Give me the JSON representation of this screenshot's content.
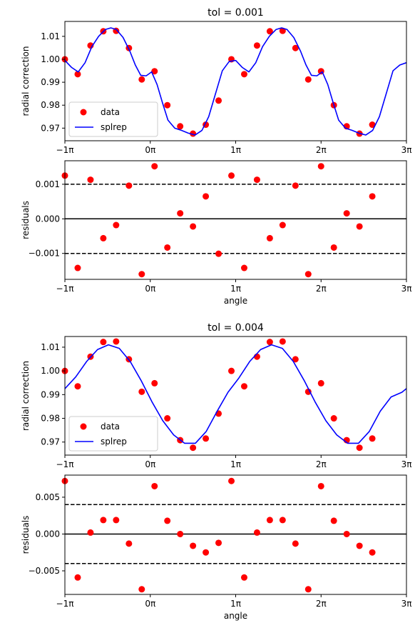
{
  "chart_data": [
    {
      "type": "scatter+line",
      "title": "tol = 0.001",
      "xlabel": "",
      "ylabel": "radial correction",
      "xlim": [
        -3.14159,
        9.42478
      ],
      "ylim": [
        0.9645,
        1.0165
      ],
      "xticks": [
        -3.14159,
        0,
        3.14159,
        6.28319,
        9.42478
      ],
      "xtick_labels": [
        "−1π",
        "0π",
        "1π",
        "2π",
        "3π"
      ],
      "yticks": [
        0.97,
        0.98,
        0.99,
        1.0,
        1.01
      ],
      "ytick_labels": [
        "0.97",
        "0.98",
        "0.99",
        "1.00",
        "1.01"
      ],
      "legend": {
        "position": "lower-left",
        "entries": [
          "data",
          "splrep"
        ]
      },
      "series": [
        {
          "name": "data",
          "kind": "scatter",
          "color": "#ff0000",
          "x": [
            -3.142,
            -2.67,
            -2.199,
            -1.728,
            -1.257,
            -0.785,
            -0.314,
            0.157,
            0.628,
            1.1,
            1.571,
            2.042,
            2.513,
            2.985,
            3.456,
            3.927,
            4.398,
            4.869,
            5.341,
            5.812,
            6.283,
            6.754,
            7.226,
            7.697,
            8.168
          ],
          "y": [
            1.0,
            0.9935,
            1.006,
            1.0122,
            1.0124,
            1.0049,
            0.9912,
            0.9948,
            0.98,
            0.9708,
            0.9676,
            0.9715,
            0.982,
            1.0,
            0.9935,
            1.006,
            1.0122,
            1.0124,
            1.0049,
            0.9912,
            0.9948,
            0.98,
            0.9708,
            0.9676,
            0.9715
          ]
        },
        {
          "name": "splrep",
          "kind": "line",
          "color": "#0000ff",
          "x": [
            -3.142,
            -2.9,
            -2.65,
            -2.4,
            -2.15,
            -1.9,
            -1.65,
            -1.45,
            -1.25,
            -1.0,
            -0.75,
            -0.55,
            -0.35,
            -0.15,
            0.05,
            0.25,
            0.45,
            0.65,
            0.9,
            1.15,
            1.4,
            1.65,
            1.9,
            2.15,
            2.4,
            2.65,
            2.9,
            3.142,
            3.38,
            3.63,
            3.88,
            4.13,
            4.38,
            4.63,
            4.83,
            5.03,
            5.28,
            5.53,
            5.73,
            5.93,
            6.13,
            6.33,
            6.53,
            6.73,
            6.93,
            7.18,
            7.43,
            7.68,
            7.93,
            8.18,
            8.43,
            8.68,
            8.93,
            9.18,
            9.42
          ],
          "y": [
            0.9995,
            0.9965,
            0.9945,
            0.9985,
            1.0055,
            1.01,
            1.013,
            1.0137,
            1.013,
            1.0095,
            1.0035,
            0.9975,
            0.993,
            0.9928,
            0.9945,
            0.989,
            0.981,
            0.9735,
            0.97,
            0.969,
            0.9678,
            0.967,
            0.969,
            0.975,
            0.985,
            0.995,
            0.999,
            0.9995,
            0.9965,
            0.9945,
            0.9985,
            1.0055,
            1.01,
            1.013,
            1.0137,
            1.013,
            1.0095,
            1.0035,
            0.9975,
            0.993,
            0.9928,
            0.9945,
            0.989,
            0.981,
            0.9735,
            0.97,
            0.969,
            0.9678,
            0.967,
            0.969,
            0.975,
            0.985,
            0.995,
            0.9975,
            0.9985
          ]
        }
      ]
    },
    {
      "type": "scatter",
      "title": "",
      "xlabel": "angle",
      "ylabel": "residuals",
      "xlim": [
        -3.14159,
        9.42478
      ],
      "ylim": [
        -0.00175,
        0.00168
      ],
      "xticks": [
        -3.14159,
        0,
        3.14159,
        6.28319,
        9.42478
      ],
      "xtick_labels": [
        "−1π",
        "0π",
        "1π",
        "2π",
        "3π"
      ],
      "yticks": [
        -0.001,
        0.0,
        0.001
      ],
      "ytick_labels": [
        "−0.001",
        "0.000",
        "0.001"
      ],
      "hlines": [
        {
          "y": 0.001,
          "style": "dashed"
        },
        {
          "y": 0.0,
          "style": "solid"
        },
        {
          "y": -0.001,
          "style": "dashed"
        }
      ],
      "series": [
        {
          "name": "",
          "kind": "scatter",
          "color": "#ff0000",
          "x": [
            -3.142,
            -2.67,
            -2.199,
            -1.728,
            -1.257,
            -0.785,
            -0.314,
            0.157,
            0.628,
            1.1,
            1.571,
            2.042,
            2.513,
            2.985,
            3.456,
            3.927,
            4.398,
            4.869,
            5.341,
            5.812,
            6.283,
            6.754,
            7.226,
            7.697,
            8.168
          ],
          "y": [
            0.00125,
            -0.00142,
            0.00113,
            -0.00056,
            -0.00018,
            0.00096,
            -0.0016,
            0.00152,
            -0.00083,
            0.00016,
            -0.00022,
            0.00065,
            -0.00101,
            0.00125,
            -0.00142,
            0.00113,
            -0.00056,
            -0.00018,
            0.00096,
            -0.0016,
            0.00152,
            -0.00083,
            0.00016,
            -0.00022,
            0.00065
          ]
        }
      ]
    },
    {
      "type": "scatter+line",
      "title": "tol = 0.004",
      "xlabel": "",
      "ylabel": "radial correction",
      "xlim": [
        -3.14159,
        9.42478
      ],
      "ylim": [
        0.9645,
        1.0145
      ],
      "xticks": [
        -3.14159,
        0,
        3.14159,
        6.28319,
        9.42478
      ],
      "xtick_labels": [
        "−1π",
        "0π",
        "1π",
        "2π",
        "3π"
      ],
      "yticks": [
        0.97,
        0.98,
        0.99,
        1.0,
        1.01
      ],
      "ytick_labels": [
        "0.97",
        "0.98",
        "0.99",
        "1.00",
        "1.01"
      ],
      "legend": {
        "position": "lower-left",
        "entries": [
          "data",
          "splrep"
        ]
      },
      "series": [
        {
          "name": "data",
          "kind": "scatter",
          "color": "#ff0000",
          "x": [
            -3.142,
            -2.67,
            -2.199,
            -1.728,
            -1.257,
            -0.785,
            -0.314,
            0.157,
            0.628,
            1.1,
            1.571,
            2.042,
            2.513,
            2.985,
            3.456,
            3.927,
            4.398,
            4.869,
            5.341,
            5.812,
            6.283,
            6.754,
            7.226,
            7.697,
            8.168
          ],
          "y": [
            1.0,
            0.9935,
            1.006,
            1.0122,
            1.0124,
            1.0049,
            0.9912,
            0.9948,
            0.98,
            0.9708,
            0.9676,
            0.9715,
            0.982,
            1.0,
            0.9935,
            1.006,
            1.0122,
            1.0124,
            1.0049,
            0.9912,
            0.9948,
            0.98,
            0.9708,
            0.9676,
            0.9715
          ]
        },
        {
          "name": "splrep",
          "kind": "line",
          "color": "#0000ff",
          "x": [
            -3.142,
            -2.74,
            -2.34,
            -1.94,
            -1.54,
            -1.14,
            -0.74,
            -0.34,
            0.06,
            0.46,
            0.86,
            1.26,
            1.66,
            2.06,
            2.46,
            2.86,
            3.26,
            3.66,
            4.06,
            4.46,
            4.86,
            5.26,
            5.66,
            6.06,
            6.46,
            6.86,
            7.26,
            7.66,
            8.06,
            8.46,
            8.86,
            9.26,
            9.42
          ],
          "y": [
            0.9925,
            0.9975,
            1.004,
            1.009,
            1.011,
            1.0095,
            1.004,
            0.996,
            0.987,
            0.979,
            0.973,
            0.9695,
            0.9695,
            0.9745,
            0.983,
            0.991,
            0.997,
            1.004,
            1.009,
            1.011,
            1.0095,
            1.004,
            0.996,
            0.987,
            0.979,
            0.973,
            0.9695,
            0.9695,
            0.9745,
            0.983,
            0.989,
            0.991,
            0.9925
          ]
        }
      ]
    },
    {
      "type": "scatter",
      "title": "",
      "xlabel": "angle",
      "ylabel": "residuals",
      "xlim": [
        -3.14159,
        9.42478
      ],
      "ylim": [
        -0.0082,
        0.008
      ],
      "xticks": [
        -3.14159,
        0,
        3.14159,
        6.28319,
        9.42478
      ],
      "xtick_labels": [
        "−1π",
        "0π",
        "1π",
        "2π",
        "3π"
      ],
      "yticks": [
        -0.005,
        0.0,
        0.005
      ],
      "ytick_labels": [
        "−0.005",
        "0.000",
        "0.005"
      ],
      "hlines": [
        {
          "y": 0.004,
          "style": "dashed"
        },
        {
          "y": 0.0,
          "style": "solid"
        },
        {
          "y": -0.004,
          "style": "dashed"
        }
      ],
      "series": [
        {
          "name": "",
          "kind": "scatter",
          "color": "#ff0000",
          "x": [
            -3.142,
            -2.67,
            -2.199,
            -1.728,
            -1.257,
            -0.785,
            -0.314,
            0.157,
            0.628,
            1.1,
            1.571,
            2.042,
            2.513,
            2.985,
            3.456,
            3.927,
            4.398,
            4.869,
            5.341,
            5.812,
            6.283,
            6.754,
            7.226,
            7.697,
            8.168
          ],
          "y": [
            0.0072,
            -0.0059,
            0.0002,
            0.0019,
            0.0019,
            -0.0013,
            -0.0075,
            0.0065,
            0.0018,
            0.0,
            -0.0016,
            -0.0025,
            -0.0012,
            0.0072,
            -0.0059,
            0.0002,
            0.0019,
            0.0019,
            -0.0013,
            -0.0075,
            0.0065,
            0.0018,
            0.0,
            -0.0016,
            -0.0025
          ]
        }
      ]
    }
  ]
}
